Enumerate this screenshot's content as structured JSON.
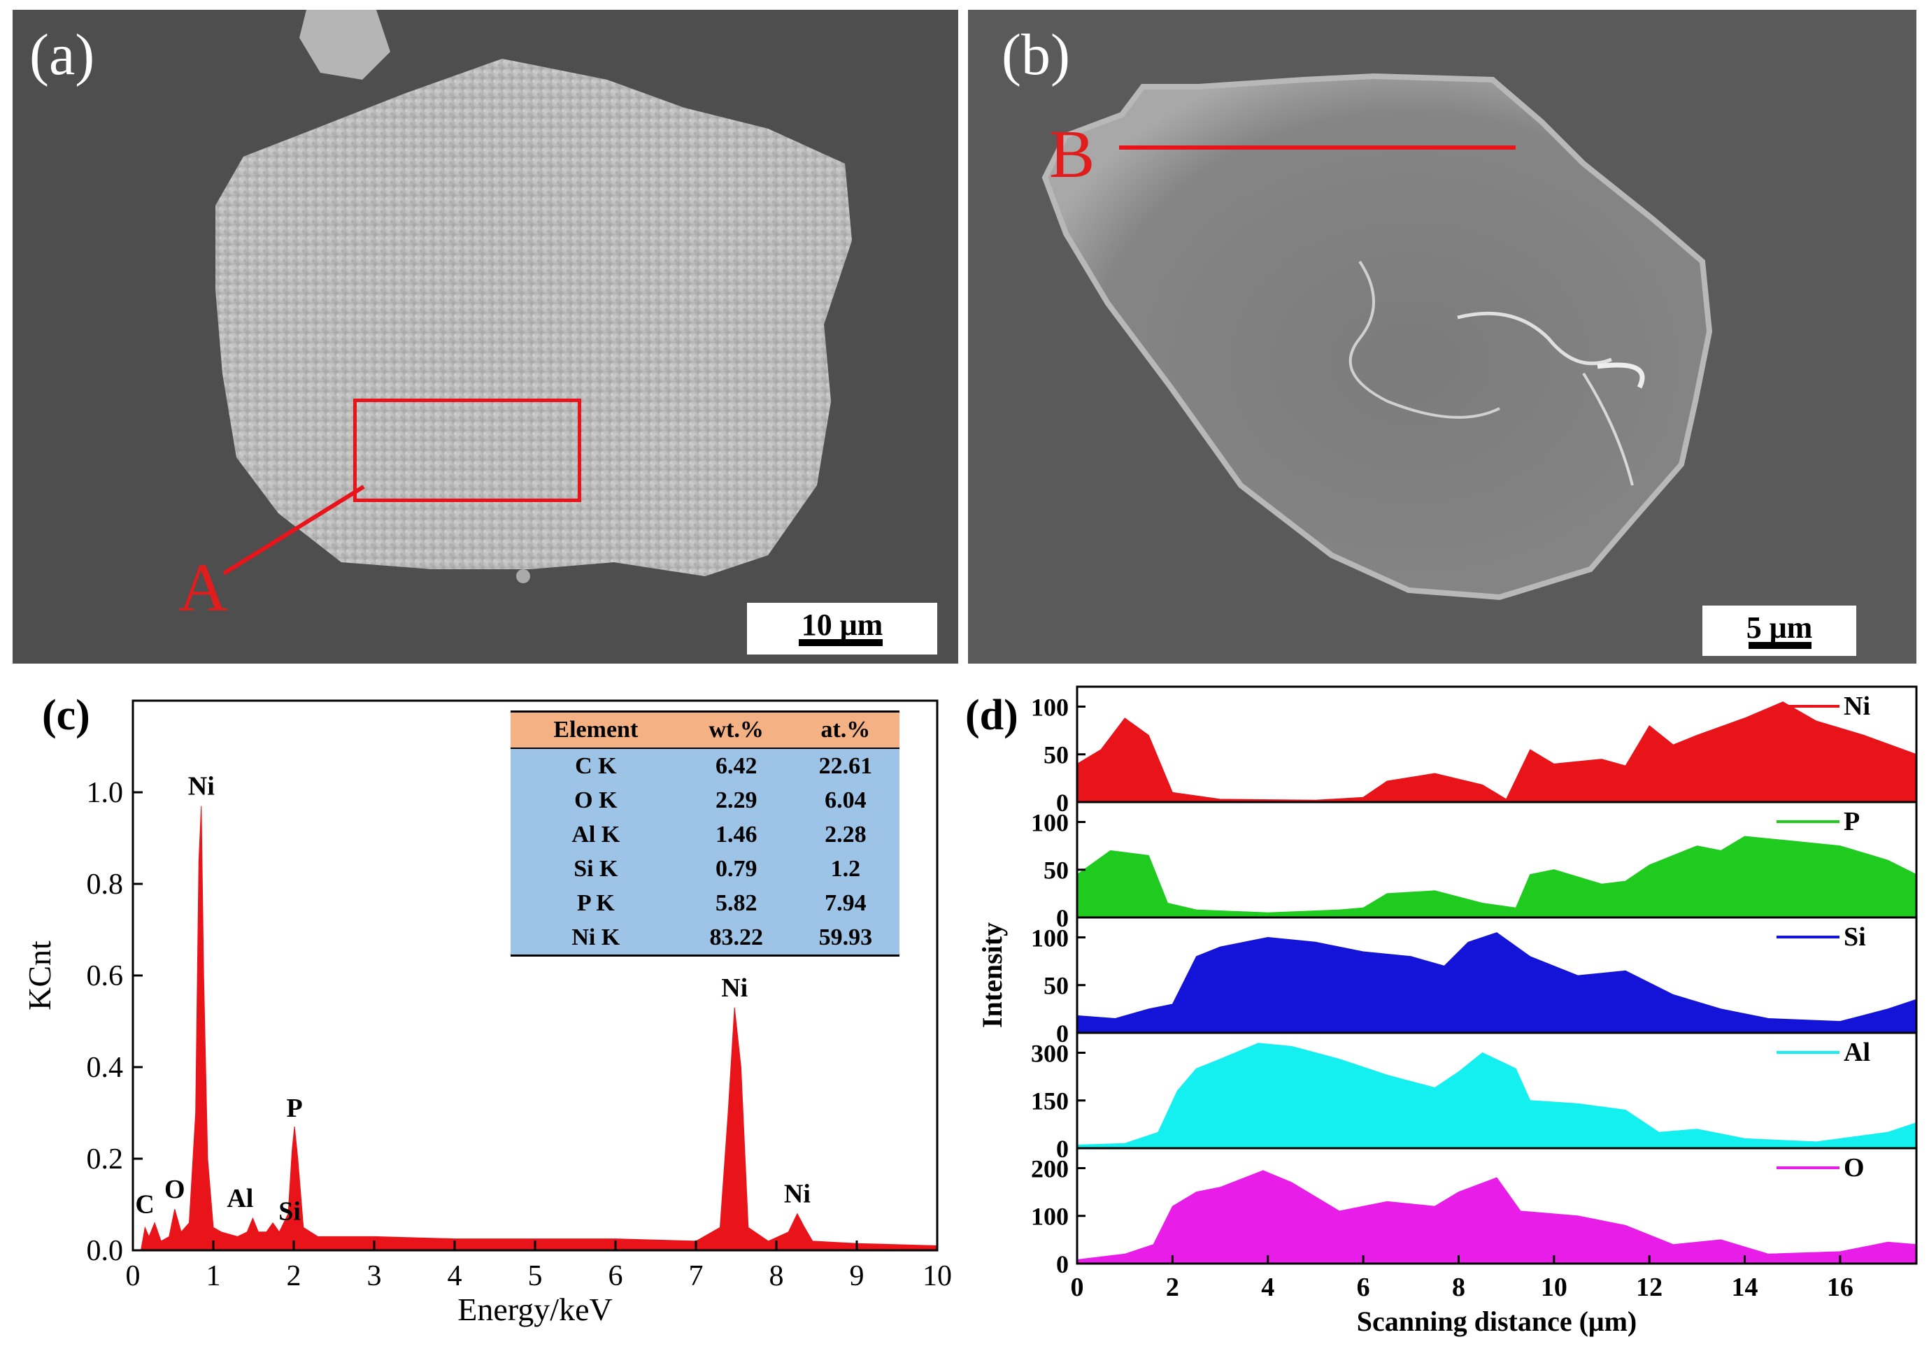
{
  "panels": {
    "a": {
      "label": "(a)",
      "marker": "A",
      "scale": "10 μm"
    },
    "b": {
      "label": "(b)",
      "marker": "B",
      "scale": "5 μm"
    },
    "c": {
      "label": "(c)"
    },
    "d": {
      "label": "(d)"
    }
  },
  "colors": {
    "red": "#e8141a",
    "green": "#1ecb1e",
    "blue": "#1414d8",
    "cyan": "#14f0f0",
    "magenta": "#e81ee8",
    "table_header": "#f4b183",
    "table_body": "#9dc3e6"
  },
  "eds_table": {
    "headers": [
      "Element",
      "wt.%",
      "at.%"
    ],
    "rows": [
      [
        "C K",
        "6.42",
        "22.61"
      ],
      [
        "O K",
        "2.29",
        "6.04"
      ],
      [
        "Al K",
        "1.46",
        "2.28"
      ],
      [
        "Si K",
        "0.79",
        "1.2"
      ],
      [
        "P K",
        "5.82",
        "7.94"
      ],
      [
        "Ni K",
        "83.22",
        "59.93"
      ]
    ]
  },
  "chart_data": [
    {
      "type": "area",
      "title": "",
      "xlabel": "Energy/keV",
      "ylabel": "KCnt",
      "xlim": [
        0,
        10
      ],
      "ylim": [
        0,
        1.2
      ],
      "xticks": [
        "0",
        "1",
        "2",
        "3",
        "4",
        "5",
        "6",
        "7",
        "8",
        "9",
        "10"
      ],
      "yticks": [
        "0.0",
        "0.2",
        "0.4",
        "0.6",
        "0.8",
        "1.0"
      ],
      "peaks": [
        {
          "label": "C",
          "x": 0.27,
          "y": 0.06
        },
        {
          "label": "O",
          "x": 0.52,
          "y": 0.09
        },
        {
          "label": "Ni",
          "x": 0.85,
          "y": 0.97
        },
        {
          "label": "Al",
          "x": 1.49,
          "y": 0.07
        },
        {
          "label": "Si",
          "x": 1.74,
          "y": 0.06
        },
        {
          "label": "P",
          "x": 2.01,
          "y": 0.27
        },
        {
          "label": "Ni",
          "x": 7.48,
          "y": 0.53
        },
        {
          "label": "Ni",
          "x": 8.26,
          "y": 0.08
        }
      ],
      "spectrum": [
        [
          0,
          0
        ],
        [
          0.1,
          0.0
        ],
        [
          0.15,
          0.05
        ],
        [
          0.2,
          0.03
        ],
        [
          0.27,
          0.06
        ],
        [
          0.35,
          0.02
        ],
        [
          0.45,
          0.03
        ],
        [
          0.52,
          0.09
        ],
        [
          0.6,
          0.04
        ],
        [
          0.7,
          0.06
        ],
        [
          0.78,
          0.3
        ],
        [
          0.82,
          0.85
        ],
        [
          0.85,
          0.97
        ],
        [
          0.88,
          0.6
        ],
        [
          0.93,
          0.2
        ],
        [
          1.0,
          0.05
        ],
        [
          1.1,
          0.04
        ],
        [
          1.3,
          0.03
        ],
        [
          1.42,
          0.04
        ],
        [
          1.49,
          0.07
        ],
        [
          1.56,
          0.04
        ],
        [
          1.66,
          0.04
        ],
        [
          1.74,
          0.06
        ],
        [
          1.82,
          0.04
        ],
        [
          1.93,
          0.08
        ],
        [
          1.98,
          0.22
        ],
        [
          2.01,
          0.27
        ],
        [
          2.05,
          0.2
        ],
        [
          2.12,
          0.05
        ],
        [
          2.3,
          0.03
        ],
        [
          3.0,
          0.03
        ],
        [
          4.0,
          0.025
        ],
        [
          5.0,
          0.025
        ],
        [
          6.0,
          0.025
        ],
        [
          7.0,
          0.02
        ],
        [
          7.3,
          0.05
        ],
        [
          7.4,
          0.3
        ],
        [
          7.48,
          0.53
        ],
        [
          7.56,
          0.4
        ],
        [
          7.65,
          0.05
        ],
        [
          7.9,
          0.02
        ],
        [
          8.15,
          0.04
        ],
        [
          8.26,
          0.08
        ],
        [
          8.35,
          0.05
        ],
        [
          8.45,
          0.02
        ],
        [
          9.0,
          0.015
        ],
        [
          10.0,
          0.01
        ]
      ]
    },
    {
      "type": "area",
      "title": "",
      "xlabel": "Scanning distance (μm)",
      "ylabel": "Intensity",
      "xlim": [
        0,
        17.6
      ],
      "xticks": [
        "0",
        "2",
        "4",
        "6",
        "8",
        "10",
        "12",
        "14",
        "16"
      ],
      "series": [
        {
          "name": "Ni",
          "color": "#e8141a",
          "ylim": [
            0,
            115
          ],
          "yticks": [
            "0",
            "50",
            "100"
          ],
          "values": [
            [
              0,
              40
            ],
            [
              0.5,
              55
            ],
            [
              1,
              88
            ],
            [
              1.5,
              70
            ],
            [
              2,
              10
            ],
            [
              3,
              3
            ],
            [
              5,
              2
            ],
            [
              6,
              5
            ],
            [
              6.5,
              22
            ],
            [
              7.5,
              30
            ],
            [
              8.5,
              18
            ],
            [
              9,
              3
            ],
            [
              9.5,
              55
            ],
            [
              10,
              40
            ],
            [
              11,
              45
            ],
            [
              11.5,
              38
            ],
            [
              12,
              80
            ],
            [
              12.5,
              60
            ],
            [
              13,
              70
            ],
            [
              14,
              88
            ],
            [
              14.8,
              105
            ],
            [
              15.5,
              85
            ],
            [
              16.5,
              70
            ],
            [
              17.6,
              50
            ]
          ]
        },
        {
          "name": "P",
          "color": "#1ecb1e",
          "ylim": [
            0,
            115
          ],
          "yticks": [
            "0",
            "50",
            "100"
          ],
          "values": [
            [
              0,
              45
            ],
            [
              0.7,
              70
            ],
            [
              1.5,
              65
            ],
            [
              1.9,
              15
            ],
            [
              2.5,
              8
            ],
            [
              4,
              5
            ],
            [
              5.5,
              8
            ],
            [
              6,
              10
            ],
            [
              6.5,
              25
            ],
            [
              7.5,
              28
            ],
            [
              8.5,
              15
            ],
            [
              9.2,
              10
            ],
            [
              9.5,
              45
            ],
            [
              10,
              50
            ],
            [
              11,
              35
            ],
            [
              11.5,
              38
            ],
            [
              12,
              55
            ],
            [
              13,
              75
            ],
            [
              13.5,
              70
            ],
            [
              14,
              85
            ],
            [
              15,
              80
            ],
            [
              16,
              75
            ],
            [
              17,
              60
            ],
            [
              17.6,
              45
            ]
          ]
        },
        {
          "name": "Si",
          "color": "#1414d8",
          "ylim": [
            0,
            115
          ],
          "yticks": [
            "0",
            "50",
            "100"
          ],
          "values": [
            [
              0,
              18
            ],
            [
              0.8,
              15
            ],
            [
              1.5,
              25
            ],
            [
              2,
              30
            ],
            [
              2.5,
              80
            ],
            [
              3,
              90
            ],
            [
              4,
              100
            ],
            [
              5,
              95
            ],
            [
              6,
              85
            ],
            [
              7,
              80
            ],
            [
              7.7,
              70
            ],
            [
              8.2,
              95
            ],
            [
              8.8,
              105
            ],
            [
              9.5,
              80
            ],
            [
              10.5,
              60
            ],
            [
              11.5,
              65
            ],
            [
              12.5,
              40
            ],
            [
              13.5,
              25
            ],
            [
              14.5,
              15
            ],
            [
              16,
              12
            ],
            [
              17,
              25
            ],
            [
              17.6,
              35
            ]
          ]
        },
        {
          "name": "Al",
          "color": "#14f0f0",
          "ylim": [
            0,
            345
          ],
          "yticks": [
            "0",
            "150",
            "300"
          ],
          "values": [
            [
              0,
              10
            ],
            [
              1,
              15
            ],
            [
              1.7,
              50
            ],
            [
              2.1,
              180
            ],
            [
              2.5,
              250
            ],
            [
              3,
              280
            ],
            [
              3.8,
              330
            ],
            [
              4.5,
              320
            ],
            [
              5.5,
              280
            ],
            [
              6.5,
              230
            ],
            [
              7.5,
              190
            ],
            [
              8,
              240
            ],
            [
              8.5,
              300
            ],
            [
              9.2,
              250
            ],
            [
              9.5,
              150
            ],
            [
              10.5,
              140
            ],
            [
              11.5,
              120
            ],
            [
              12.2,
              50
            ],
            [
              13,
              60
            ],
            [
              14,
              30
            ],
            [
              15.5,
              20
            ],
            [
              17,
              50
            ],
            [
              17.6,
              80
            ]
          ]
        },
        {
          "name": "O",
          "color": "#e81ee8",
          "ylim": [
            0,
            230
          ],
          "yticks": [
            "0",
            "100",
            "200"
          ],
          "values": [
            [
              0,
              8
            ],
            [
              1,
              20
            ],
            [
              1.6,
              40
            ],
            [
              2,
              120
            ],
            [
              2.5,
              150
            ],
            [
              3,
              160
            ],
            [
              3.9,
              195
            ],
            [
              4.5,
              170
            ],
            [
              5.5,
              110
            ],
            [
              6.5,
              130
            ],
            [
              7.5,
              120
            ],
            [
              8,
              150
            ],
            [
              8.8,
              180
            ],
            [
              9.3,
              110
            ],
            [
              10.5,
              100
            ],
            [
              11.5,
              80
            ],
            [
              12.5,
              40
            ],
            [
              13.5,
              50
            ],
            [
              14.5,
              20
            ],
            [
              16,
              25
            ],
            [
              17,
              45
            ],
            [
              17.6,
              40
            ]
          ]
        }
      ]
    }
  ]
}
